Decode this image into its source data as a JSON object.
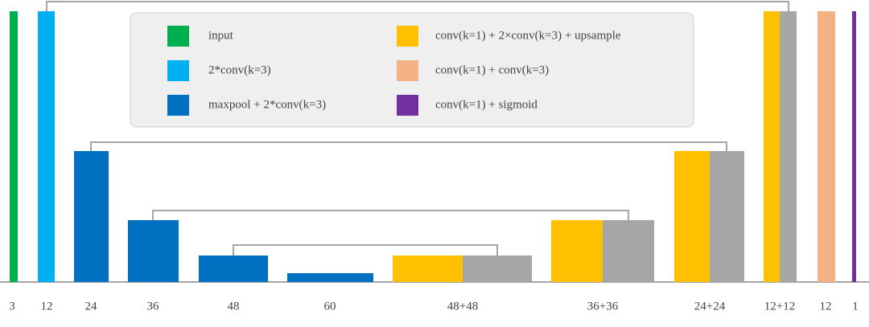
{
  "legend": [
    {
      "label": "input",
      "color": "#00b050"
    },
    {
      "label": "2*conv(k=3)",
      "color": "#00b0f0"
    },
    {
      "label": "maxpool + 2*conv(k=3)",
      "color": "#0070c0"
    },
    {
      "label": "conv(k=1)  + 2×conv(k=3) + upsample",
      "color": "#ffc000"
    },
    {
      "label": "conv(k=1)  + conv(k=3)",
      "color": "#f4b183"
    },
    {
      "label": "conv(k=1) + sigmoid",
      "color": "#7030a0"
    }
  ],
  "stages": [
    {
      "label": "3"
    },
    {
      "label": "12"
    },
    {
      "label": "24"
    },
    {
      "label": "36"
    },
    {
      "label": "48"
    },
    {
      "label": "60"
    },
    {
      "label": "48+48"
    },
    {
      "label": "36+36"
    },
    {
      "label": "24+24"
    },
    {
      "label": "12+12"
    },
    {
      "label": "12"
    },
    {
      "label": "1"
    }
  ]
}
